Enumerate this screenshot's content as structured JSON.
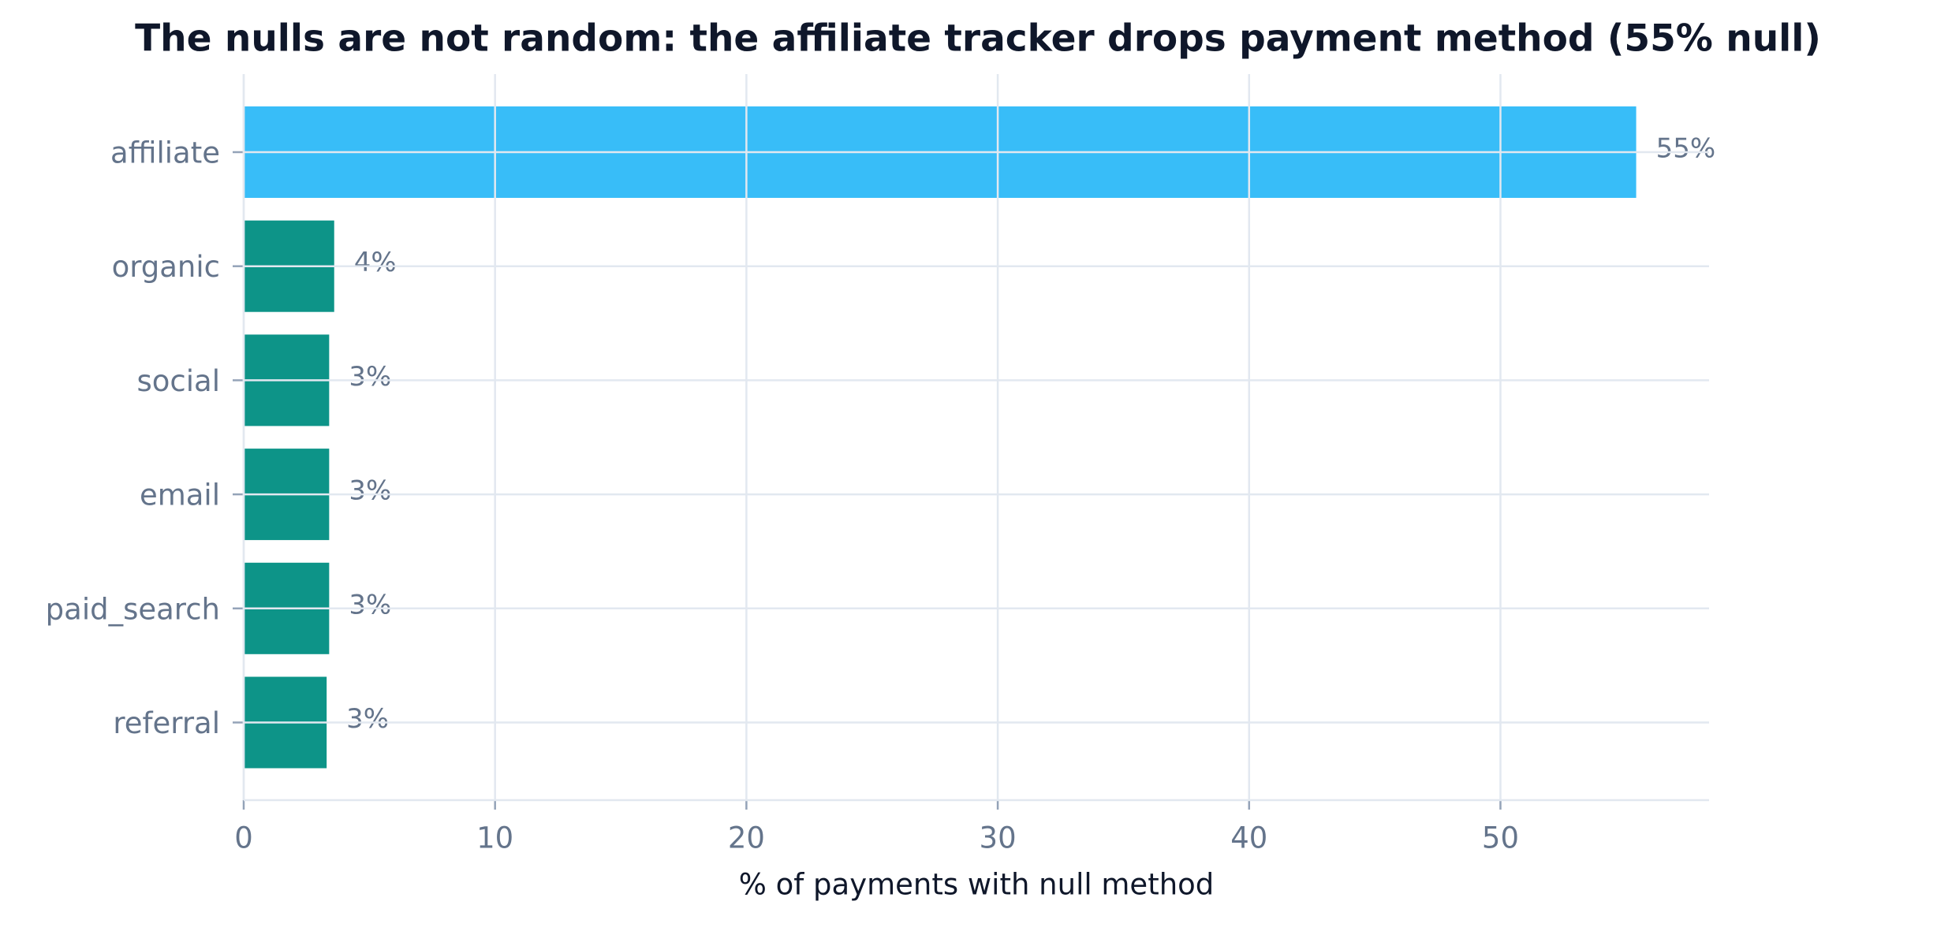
{
  "chart_data": {
    "type": "barh",
    "title": "The nulls are not random: the affiliate tracker drops payment method (55% null)",
    "xlabel": "% of payments with null method",
    "categories": [
      "affiliate",
      "organic",
      "social",
      "email",
      "paid_search",
      "referral"
    ],
    "values": [
      55.4,
      3.6,
      3.4,
      3.4,
      3.4,
      3.3
    ],
    "value_labels": [
      "55%",
      "4%",
      "3%",
      "3%",
      "3%",
      "3%"
    ],
    "colors": [
      "#38bdf8",
      "#0d9488",
      "#0d9488",
      "#0d9488",
      "#0d9488",
      "#0d9488"
    ],
    "xlim": [
      0,
      58.3
    ],
    "xticks": [
      0,
      10,
      20,
      30,
      40,
      50
    ],
    "grid": true
  }
}
